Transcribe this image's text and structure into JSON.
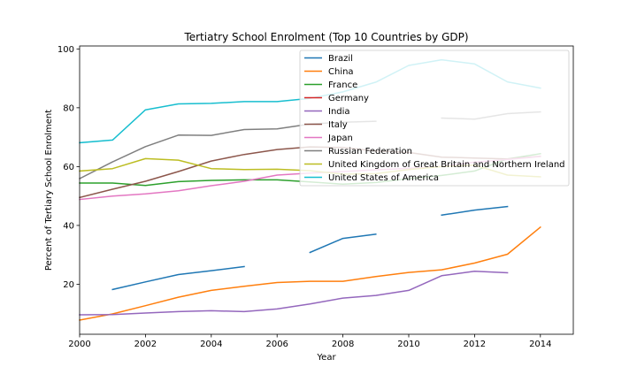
{
  "chart_data": {
    "type": "line",
    "title": "Tertiatry School Enrolment (Top 10 Countries by GDP)",
    "xlabel": "Year",
    "ylabel": "Percent of Tertiary School Enrolment",
    "xlim": [
      2000,
      2015
    ],
    "ylim": [
      3,
      101
    ],
    "x_ticks": [
      2000,
      2002,
      2004,
      2006,
      2008,
      2010,
      2012,
      2014
    ],
    "y_ticks": [
      20,
      40,
      60,
      80,
      100
    ],
    "grid": false,
    "legend_position": "upper right",
    "x": [
      2000,
      2001,
      2002,
      2003,
      2004,
      2005,
      2006,
      2007,
      2008,
      2009,
      2010,
      2011,
      2012,
      2013,
      2014
    ],
    "series": [
      {
        "name": "Brazil",
        "color": "#1f77b4",
        "values": [
          null,
          18.2,
          20.8,
          23.3,
          24.6,
          26.0,
          null,
          30.8,
          35.6,
          37.0,
          null,
          43.5,
          45.2,
          46.4,
          null
        ]
      },
      {
        "name": "China",
        "color": "#ff7f0e",
        "values": [
          7.8,
          9.9,
          12.7,
          15.6,
          17.9,
          19.3,
          20.6,
          21.0,
          21.0,
          22.6,
          24.0,
          24.9,
          27.2,
          30.2,
          39.4
        ]
      },
      {
        "name": "France",
        "color": "#2ca02c",
        "values": [
          54.4,
          54.4,
          53.6,
          54.9,
          55.3,
          55.5,
          55.5,
          54.8,
          54.0,
          54.6,
          55.9,
          57.0,
          58.5,
          62.6,
          64.4
        ]
      },
      {
        "name": "Germany",
        "color": "#d62728",
        "values": [
          null,
          null,
          null,
          null,
          null,
          null,
          null,
          null,
          null,
          null,
          null,
          null,
          null,
          null,
          null
        ]
      },
      {
        "name": "India",
        "color": "#9467bd",
        "values": [
          9.6,
          9.7,
          10.2,
          10.7,
          11.0,
          10.7,
          11.6,
          13.3,
          15.3,
          16.2,
          17.9,
          22.9,
          24.4,
          23.9,
          null
        ]
      },
      {
        "name": "Italy",
        "color": "#8c564b",
        "values": [
          49.5,
          52.3,
          55.0,
          58.3,
          61.9,
          64.1,
          65.8,
          66.7,
          66.5,
          65.3,
          64.8,
          63.2,
          62.9,
          62.6,
          63.5
        ]
      },
      {
        "name": "Japan",
        "color": "#e377c2",
        "values": [
          48.8,
          50.0,
          50.7,
          51.8,
          53.5,
          55.0,
          57.1,
          57.8,
          58.3,
          58.9,
          59.4,
          60.1,
          61.5,
          62.4,
          63.4
        ]
      },
      {
        "name": "Russian Federation",
        "color": "#7f7f7f",
        "values": [
          55.9,
          61.6,
          66.8,
          70.7,
          70.6,
          72.6,
          72.8,
          74.5,
          75.1,
          75.4,
          null,
          76.5,
          76.1,
          78.0,
          78.6
        ]
      },
      {
        "name": "United Kingdom of Great Britain and Northern Ireland",
        "color": "#bcbd22",
        "values": [
          58.5,
          59.3,
          62.7,
          62.2,
          59.3,
          59.0,
          59.1,
          58.6,
          57.4,
          57.6,
          59.0,
          60.0,
          60.5,
          57.1,
          56.5
        ]
      },
      {
        "name": "United States of America",
        "color": "#17becf",
        "values": [
          68.1,
          69.0,
          79.3,
          81.3,
          81.5,
          82.1,
          82.1,
          83.2,
          85.4,
          88.7,
          94.4,
          96.3,
          94.9,
          88.8,
          86.7
        ]
      }
    ]
  }
}
